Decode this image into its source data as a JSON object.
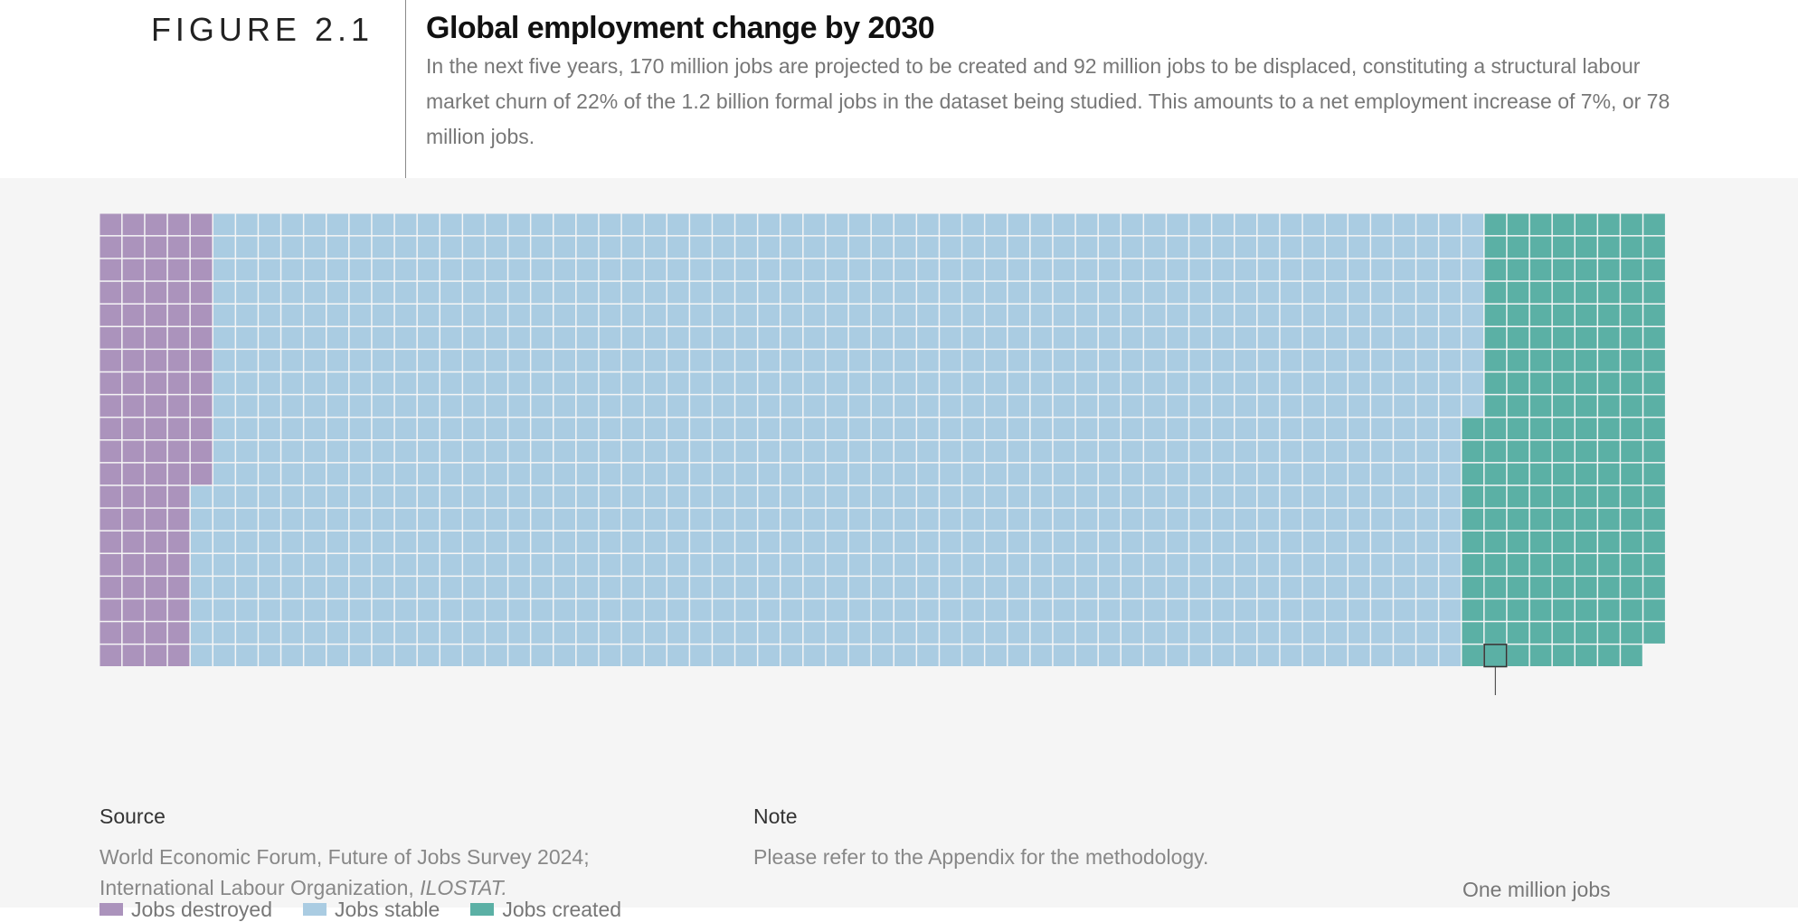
{
  "figure": {
    "label": "FIGURE 2.1",
    "title": "Global employment change by 2030",
    "subtitle": "In the next five years, 170 million jobs are projected to be created and 92 million jobs to be displaced, constituting a structural labour market churn of 22% of the 1.2 billion formal jobs in the dataset being studied. This amounts to a net employment increase of 7%, or 78 million jobs."
  },
  "chart_data": {
    "type": "waffle",
    "unit_label": "One million jobs",
    "unit_value_millions": 1,
    "rows": 20,
    "categories": [
      {
        "name": "Jobs destroyed",
        "color": "#ab93bc",
        "count": 92
      },
      {
        "name": "Jobs stable",
        "color": "#aacce2",
        "count": 1117
      },
      {
        "name": "Jobs created",
        "color": "#5bb0a5",
        "count": 170
      }
    ]
  },
  "legend": {
    "items": [
      {
        "label": "Jobs destroyed",
        "color": "#ab93bc"
      },
      {
        "label": "Jobs stable",
        "color": "#aacce2"
      },
      {
        "label": "Jobs created",
        "color": "#5bb0a5"
      }
    ]
  },
  "footer": {
    "source_heading": "Source",
    "source_line1": "World Economic Forum, Future of Jobs Survey 2024;",
    "source_line2_prefix": "International Labour Organization, ",
    "source_line2_italic": "ILOSTAT.",
    "note_heading": "Note",
    "note_text": "Please refer to the Appendix for the methodology."
  }
}
